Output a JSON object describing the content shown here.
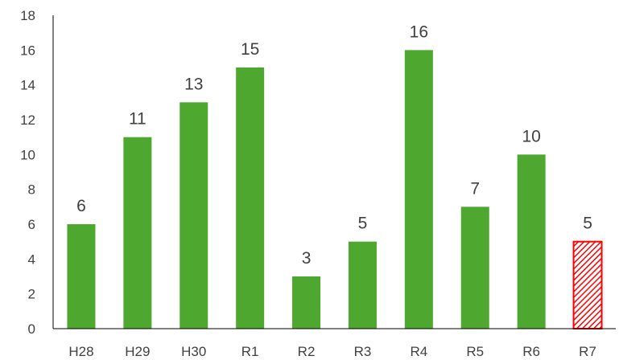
{
  "chart_data": {
    "type": "bar",
    "categories": [
      "H28",
      "H29",
      "H30",
      "R1",
      "R2",
      "R3",
      "R4",
      "R5",
      "R6",
      "R7"
    ],
    "values": [
      6,
      11,
      13,
      15,
      3,
      5,
      16,
      7,
      10,
      5
    ],
    "data_labels": [
      "6",
      "11",
      "13",
      "15",
      "3",
      "5",
      "16",
      "7",
      "10",
      "5"
    ],
    "title": "",
    "xlabel": "",
    "ylabel": "",
    "ylim": [
      0,
      18
    ],
    "yticks": [
      0,
      2,
      4,
      6,
      8,
      10,
      12,
      14,
      16,
      18
    ],
    "ytick_labels": [
      "0",
      "2",
      "4",
      "6",
      "8",
      "10",
      "12",
      "14",
      "16",
      "18"
    ],
    "grid": false,
    "legend": "none",
    "colors": {
      "bar": "#4ea72e",
      "highlight": "#ff0000",
      "axis": "#000000",
      "text": "#404040"
    },
    "highlight_category": "R7",
    "highlight_style": "diagonal-hatch"
  }
}
